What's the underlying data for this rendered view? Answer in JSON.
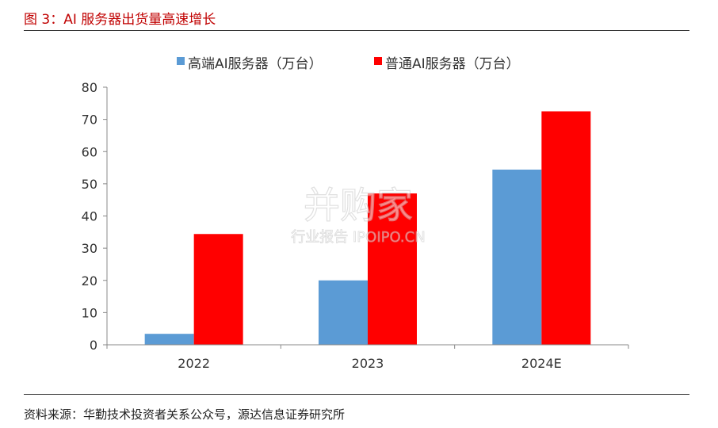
{
  "figure": {
    "title": "图 3：AI 服务器出货量高速增长",
    "source": "资料来源：华勤技术投资者关系公众号，源达信息证券研究所"
  },
  "watermark": {
    "line1": "并购家",
    "line2": "行业报告 IPOIPO.CN"
  },
  "chart_data": {
    "type": "bar",
    "title": "",
    "xlabel": "",
    "ylabel": "",
    "categories": [
      "2022",
      "2023",
      "2024E"
    ],
    "series": [
      {
        "name": "高端AI服务器（万台）",
        "color": "#5b9bd5",
        "values": [
          3.4,
          20,
          54.4
        ]
      },
      {
        "name": "普通AI服务器（万台）",
        "color": "#ff0000",
        "values": [
          34.4,
          47,
          72.5
        ]
      }
    ],
    "ylim": [
      0,
      80
    ],
    "yticks": [
      "0",
      "10",
      "20",
      "30",
      "40",
      "50",
      "60",
      "70",
      "80"
    ],
    "grid": false,
    "legend_position": "top-center"
  }
}
